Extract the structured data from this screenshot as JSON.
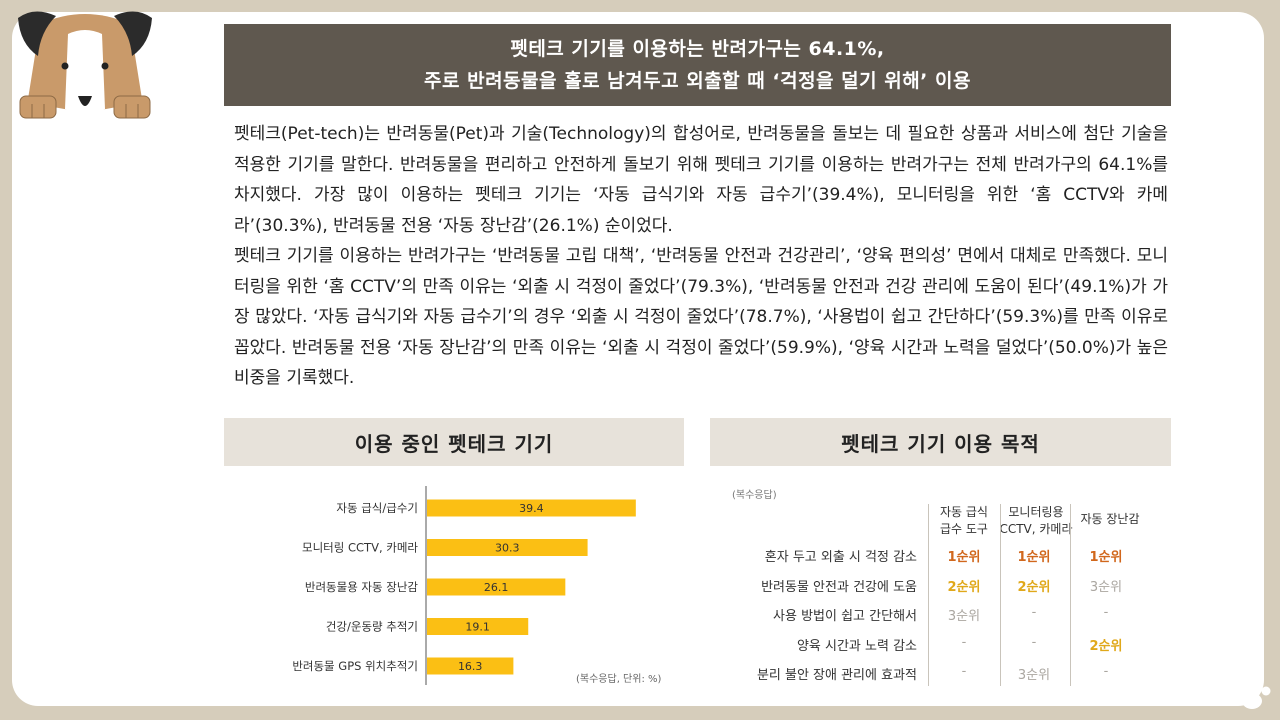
{
  "headline": {
    "line1": "펫테크 기기를 이용하는 반려가구는 64.1%,",
    "line2": "주로 반려동물을 홀로 남겨두고 외출할 때 ‘걱정을 덜기 위해’ 이용"
  },
  "body": {
    "p1": "펫테크(Pet-tech)는 반려동물(Pet)과 기술(Technology)의 합성어로, 반려동물을 돌보는 데 필요한 상품과 서비스에 첨단 기술을 적용한 기기를 말한다. 반려동물을 편리하고 안전하게 돌보기 위해 펫테크 기기를 이용하는 반려가구는 전체 반려가구의 64.1%를 차지했다. 가장 많이 이용하는 펫테크 기기는 ‘자동 급식기와 자동 급수기’(39.4%), 모니터링을 위한 ‘홈 CCTV와 카메라’(30.3%), 반려동물 전용 ‘자동 장난감’(26.1%) 순이었다.",
    "p2": "펫테크 기기를 이용하는 반려가구는 ‘반려동물 고립 대책’, ‘반려동물 안전과 건강관리’, ‘양육 편의성’ 면에서 대체로 만족했다. 모니터링을 위한 ‘홈 CCTV’의 만족 이유는 ‘외출 시 걱정이 줄었다’(79.3%), ‘반려동물 안전과 건강 관리에 도움이 된다’(49.1%)가 가장 많았다. ‘자동 급식기와 자동 급수기’의 경우 ‘외출 시 걱정이 줄었다’(78.7%), ‘사용법이 쉽고 간단하다’(59.3%)를 만족 이유로 꼽았다. 반려동물 전용 ‘자동 장난감’의 만족 이유는 ‘외출 시 걱정이 줄었다’(59.9%), ‘양육 시간과 노력을 덜었다’(50.0%)가 높은 비중을 기록했다."
  },
  "left_section": {
    "title": "이용 중인 펫테크 기기"
  },
  "right_section": {
    "title": "펫테크 기기 이용 목적"
  },
  "chart_data": {
    "type": "bar",
    "orientation": "horizontal",
    "categories": [
      "자동 급식/급수기",
      "모니터링 CCTV, 카메라",
      "반려동물용 자동 장난감",
      "건강/운동량 추적기",
      "반려동물 GPS 위치추적기"
    ],
    "values": [
      39.4,
      30.3,
      26.1,
      19.1,
      16.3
    ],
    "note": "(복수응답, 단위: %)",
    "bar_color": "#fbbf14"
  },
  "purpose_table": {
    "note": "(복수응답)",
    "columns": [
      [
        "자동 급식",
        "급수 도구"
      ],
      [
        "모니터링용",
        "CCTV, 카메라"
      ],
      [
        "자동 장난감"
      ]
    ],
    "rows": [
      {
        "label": "혼자 두고 외출 시 걱정 감소",
        "cells": [
          "1순위",
          "1순위",
          "1순위"
        ]
      },
      {
        "label": "반려동물 안전과 건강에 도움",
        "cells": [
          "2순위",
          "2순위",
          "3순위"
        ]
      },
      {
        "label": "사용 방법이 쉽고 간단해서",
        "cells": [
          "3순위",
          "-",
          "-"
        ]
      },
      {
        "label": "양육 시간과 노력 감소",
        "cells": [
          "-",
          "-",
          "2순위"
        ]
      },
      {
        "label": "분리 불안 장애 관리에 효과적",
        "cells": [
          "-",
          "3순위",
          "-"
        ]
      }
    ],
    "rank_colors": {
      "1순위": "#d1671c",
      "2순위": "#e0a81a",
      "3순위": "#aaa6a0"
    }
  }
}
